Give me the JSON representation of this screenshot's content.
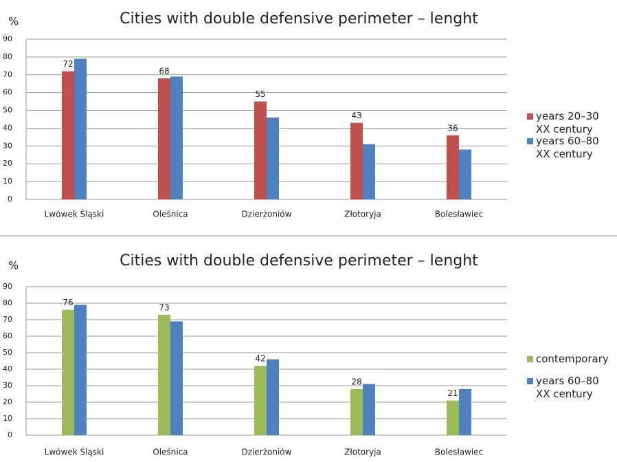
{
  "chart_data": [
    {
      "type": "bar",
      "title": "Cities with double defensive perimeter – lenght",
      "y_label": "%",
      "categories": [
        "Lwówek Śląski",
        "Oleśnica",
        "Dzierżoniów",
        "Złotoryja",
        "Bolesławiec"
      ],
      "series": [
        {
          "name": "years 20–30 XX century",
          "color": "#c0504d",
          "values": [
            72,
            68,
            55,
            43,
            36
          ]
        },
        {
          "name": "years 60–80 XX century",
          "color": "#4f81bd",
          "values": [
            79,
            69,
            46,
            31,
            28
          ]
        }
      ],
      "ylim": [
        0,
        90
      ],
      "yticks": [
        0,
        10,
        20,
        30,
        40,
        50,
        60,
        70,
        80,
        90
      ],
      "grid": true,
      "legend": "right"
    },
    {
      "type": "bar",
      "title": "Cities with double defensive perimeter – lenght",
      "y_label": "%",
      "categories": [
        "Lwówek Śląski",
        "Oleśnica",
        "Dzierżoniów",
        "Złotoryja",
        "Bolesławiec"
      ],
      "series": [
        {
          "name": "contemporary",
          "color": "#9bbb59",
          "values": [
            76,
            73,
            42,
            28,
            21
          ]
        },
        {
          "name": "years 60–80 XX century",
          "color": "#4f81bd",
          "values": [
            79,
            69,
            46,
            31,
            28
          ]
        }
      ],
      "ylim": [
        0,
        90
      ],
      "yticks": [
        0,
        10,
        20,
        30,
        40,
        50,
        60,
        70,
        80,
        90
      ],
      "grid": true,
      "legend": "right"
    }
  ]
}
